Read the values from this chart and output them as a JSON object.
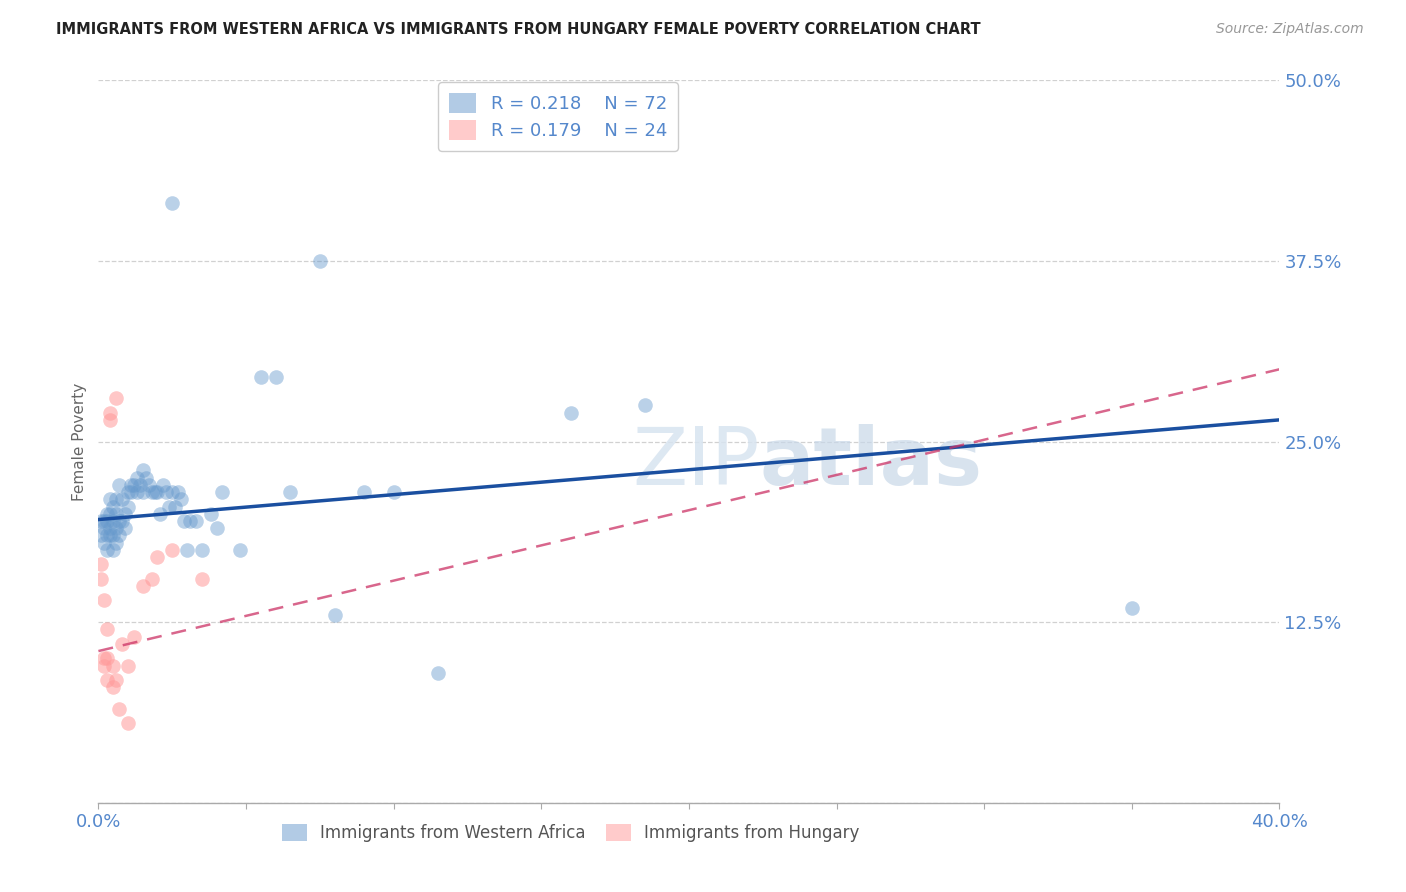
{
  "title": "IMMIGRANTS FROM WESTERN AFRICA VS IMMIGRANTS FROM HUNGARY FEMALE POVERTY CORRELATION CHART",
  "source": "Source: ZipAtlas.com",
  "ylabel": "Female Poverty",
  "xlim": [
    0.0,
    0.4
  ],
  "ylim": [
    0.0,
    0.5
  ],
  "yticks": [
    0.0,
    0.125,
    0.25,
    0.375,
    0.5
  ],
  "ytick_labels": [
    "",
    "12.5%",
    "25.0%",
    "37.5%",
    "50.0%"
  ],
  "r_blue": 0.218,
  "n_blue": 72,
  "r_pink": 0.179,
  "n_pink": 24,
  "blue_color": "#6699CC",
  "pink_color": "#FF9999",
  "line_blue_color": "#1a4fa0",
  "line_pink_color": "#cc3366",
  "background_color": "#ffffff",
  "grid_color": "#cccccc",
  "axis_label_color": "#5588cc",
  "blue_scatter_x": [
    0.001,
    0.001,
    0.002,
    0.002,
    0.002,
    0.003,
    0.003,
    0.003,
    0.003,
    0.004,
    0.004,
    0.004,
    0.004,
    0.005,
    0.005,
    0.005,
    0.005,
    0.006,
    0.006,
    0.006,
    0.006,
    0.007,
    0.007,
    0.007,
    0.008,
    0.008,
    0.009,
    0.009,
    0.01,
    0.01,
    0.011,
    0.011,
    0.012,
    0.013,
    0.013,
    0.014,
    0.015,
    0.015,
    0.016,
    0.017,
    0.018,
    0.019,
    0.02,
    0.021,
    0.022,
    0.023,
    0.024,
    0.025,
    0.026,
    0.027,
    0.028,
    0.029,
    0.03,
    0.031,
    0.033,
    0.035,
    0.038,
    0.04,
    0.042,
    0.048,
    0.055,
    0.06,
    0.065,
    0.075,
    0.08,
    0.1,
    0.115,
    0.16,
    0.185,
    0.35,
    0.025,
    0.09
  ],
  "blue_scatter_y": [
    0.185,
    0.195,
    0.18,
    0.19,
    0.195,
    0.175,
    0.185,
    0.195,
    0.2,
    0.185,
    0.19,
    0.2,
    0.21,
    0.175,
    0.185,
    0.195,
    0.205,
    0.18,
    0.19,
    0.2,
    0.21,
    0.185,
    0.195,
    0.22,
    0.195,
    0.21,
    0.19,
    0.2,
    0.205,
    0.215,
    0.215,
    0.22,
    0.22,
    0.215,
    0.225,
    0.22,
    0.215,
    0.23,
    0.225,
    0.22,
    0.215,
    0.215,
    0.215,
    0.2,
    0.22,
    0.215,
    0.205,
    0.215,
    0.205,
    0.215,
    0.21,
    0.195,
    0.175,
    0.195,
    0.195,
    0.175,
    0.2,
    0.19,
    0.215,
    0.175,
    0.295,
    0.295,
    0.215,
    0.375,
    0.13,
    0.215,
    0.09,
    0.27,
    0.275,
    0.135,
    0.415,
    0.215
  ],
  "pink_scatter_x": [
    0.001,
    0.001,
    0.002,
    0.002,
    0.002,
    0.003,
    0.003,
    0.003,
    0.004,
    0.004,
    0.005,
    0.005,
    0.006,
    0.006,
    0.007,
    0.008,
    0.01,
    0.01,
    0.012,
    0.015,
    0.018,
    0.02,
    0.025,
    0.035
  ],
  "pink_scatter_y": [
    0.155,
    0.165,
    0.095,
    0.14,
    0.1,
    0.085,
    0.1,
    0.12,
    0.27,
    0.265,
    0.08,
    0.095,
    0.085,
    0.28,
    0.065,
    0.11,
    0.055,
    0.095,
    0.115,
    0.15,
    0.155,
    0.17,
    0.175,
    0.155
  ],
  "blue_line_x": [
    0.0,
    0.4
  ],
  "blue_line_y": [
    0.196,
    0.265
  ],
  "pink_line_x": [
    0.0,
    0.4
  ],
  "pink_line_y": [
    0.105,
    0.3
  ]
}
